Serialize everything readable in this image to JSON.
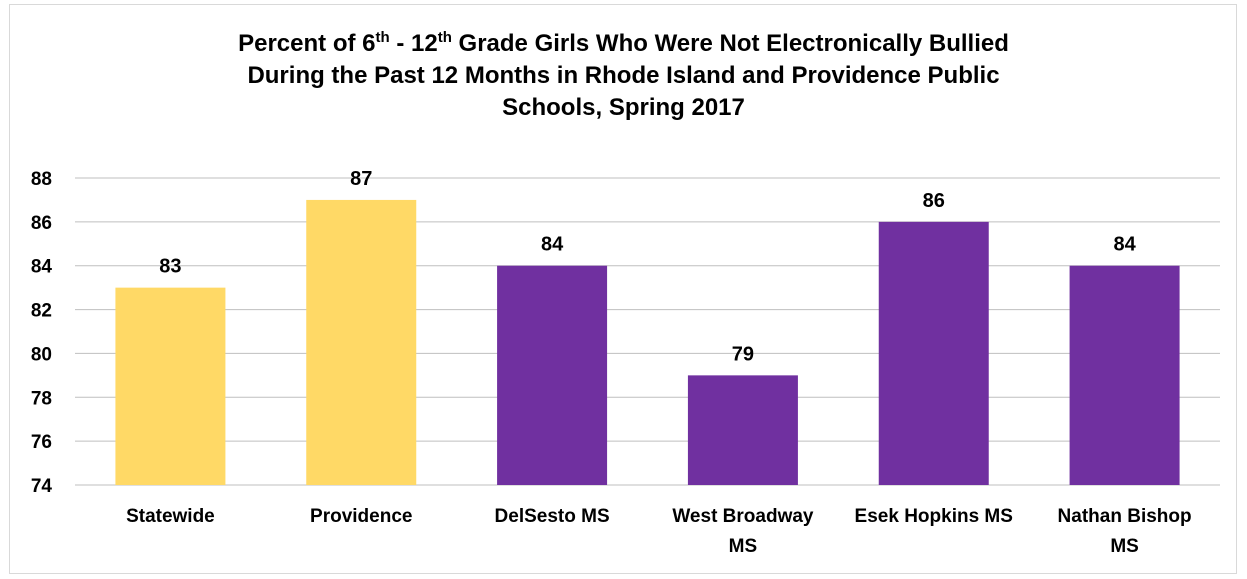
{
  "chart_data": {
    "type": "bar",
    "title": {
      "line1_a": "Percent of 6",
      "line1_sup1": "th",
      "line1_b": " - 12",
      "line1_sup2": "th",
      "line1_c": " Grade Girls Who Were Not Electronically Bullied",
      "line2": "During the Past 12 Months in Rhode Island and Providence Public",
      "line3": "Schools, Spring 2017"
    },
    "categories": [
      [
        "Statewide"
      ],
      [
        "Providence"
      ],
      [
        "DelSesto MS"
      ],
      [
        "West Broadway",
        "MS"
      ],
      [
        "Esek Hopkins MS"
      ],
      [
        "Nathan Bishop",
        "MS"
      ]
    ],
    "values": [
      83,
      87,
      84,
      79,
      86,
      84
    ],
    "data_labels": [
      "83",
      "87",
      "84",
      "79",
      "86",
      "84"
    ],
    "bar_colors": [
      "#ffd966",
      "#ffd966",
      "#7030a0",
      "#7030a0",
      "#7030a0",
      "#7030a0"
    ],
    "ylim": [
      74,
      88
    ],
    "yticks": [
      "74",
      "76",
      "78",
      "80",
      "82",
      "84",
      "86",
      "88"
    ],
    "grid": true,
    "gridline_color": "#bfbfbf",
    "legend": "none"
  }
}
